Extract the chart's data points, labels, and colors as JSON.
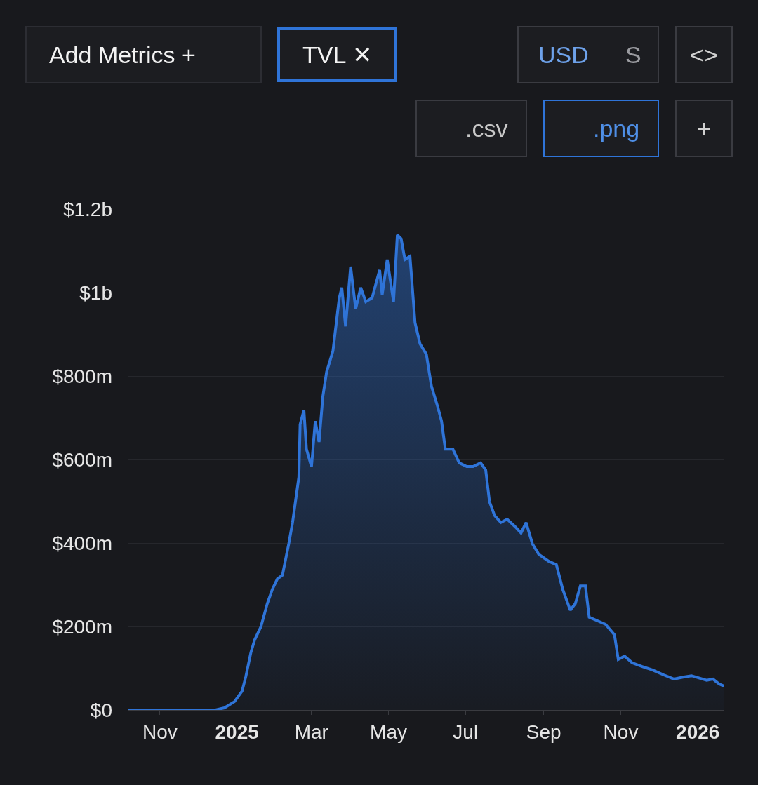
{
  "chart_data": {
    "type": "area",
    "x": [
      "2024-10-07",
      "2024-11-15",
      "2024-12-15",
      "2024-12-22",
      "2024-12-30",
      "2025-01-05",
      "2025-01-08",
      "2025-01-12",
      "2025-01-15",
      "2025-01-20",
      "2025-01-25",
      "2025-01-29",
      "2025-02-02",
      "2025-02-06",
      "2025-02-11",
      "2025-02-14",
      "2025-02-19",
      "2025-02-20",
      "2025-02-23",
      "2025-02-25",
      "2025-03-01",
      "2025-03-04",
      "2025-03-07",
      "2025-03-10",
      "2025-03-13",
      "2025-03-18",
      "2025-03-23",
      "2025-03-25",
      "2025-03-28",
      "2025-04-01",
      "2025-04-05",
      "2025-04-09",
      "2025-04-13",
      "2025-04-18",
      "2025-04-24",
      "2025-04-26",
      "2025-04-30",
      "2025-05-05",
      "2025-05-08",
      "2025-05-11",
      "2025-05-14",
      "2025-05-18",
      "2025-05-22",
      "2025-05-26",
      "2025-05-31",
      "2025-06-04",
      "2025-06-09",
      "2025-06-12",
      "2025-06-15",
      "2025-06-21",
      "2025-06-26",
      "2025-07-02",
      "2025-07-07",
      "2025-07-13",
      "2025-07-17",
      "2025-07-20",
      "2025-07-24",
      "2025-07-29",
      "2025-08-03",
      "2025-08-09",
      "2025-08-14",
      "2025-08-18",
      "2025-08-23",
      "2025-08-28",
      "2025-09-05",
      "2025-09-11",
      "2025-09-16",
      "2025-09-22",
      "2025-09-26",
      "2025-09-30",
      "2025-10-04",
      "2025-10-07",
      "2025-10-14",
      "2025-10-20",
      "2025-10-27",
      "2025-10-30",
      "2025-11-04",
      "2025-11-10",
      "2025-11-18",
      "2025-11-26",
      "2025-12-05",
      "2025-12-13",
      "2025-12-21",
      "2025-12-27",
      "2026-01-08",
      "2026-01-13",
      "2026-01-18",
      "2026-01-22"
    ],
    "series": [
      {
        "color": "#2f74d8",
        "values": [
          0,
          0,
          0,
          5000000,
          20000000,
          45000000,
          80000000,
          138000000,
          168000000,
          200000000,
          255000000,
          289000000,
          314000000,
          323000000,
          398000000,
          449000000,
          558000000,
          684000000,
          718000000,
          625000000,
          583000000,
          692000000,
          642000000,
          751000000,
          810000000,
          860000000,
          987000000,
          1012000000,
          919000000,
          1062000000,
          961000000,
          1012000000,
          978000000,
          987000000,
          1054000000,
          995000000,
          1079000000,
          978000000,
          1138000000,
          1129000000,
          1079000000,
          1087000000,
          928000000,
          877000000,
          852000000,
          776000000,
          726000000,
          692000000,
          625000000,
          625000000,
          592000000,
          583000000,
          583000000,
          592000000,
          575000000,
          499000000,
          466000000,
          449000000,
          457000000,
          440000000,
          424000000,
          449000000,
          398000000,
          373000000,
          356000000,
          348000000,
          289000000,
          239000000,
          255000000,
          297000000,
          297000000,
          222000000,
          213000000,
          205000000,
          180000000,
          121000000,
          129000000,
          113000000,
          104000000,
          96000000,
          84000000,
          74000000,
          79000000,
          82000000,
          71000000,
          74000000,
          62000000,
          57000000
        ]
      }
    ],
    "xlim": [
      "2024-10-07",
      "2026-01-22"
    ],
    "xticks": [
      {
        "value": "2024-11-01",
        "label": "Nov"
      },
      {
        "value": "2025-01-01",
        "label": "2025"
      },
      {
        "value": "2025-03-01",
        "label": "Mar"
      },
      {
        "value": "2025-05-01",
        "label": "May"
      },
      {
        "value": "2025-07-01",
        "label": "Jul"
      },
      {
        "value": "2025-09-01",
        "label": "Sep"
      },
      {
        "value": "2025-11-01",
        "label": "Nov"
      },
      {
        "value": "2026-01-01",
        "label": "2026"
      }
    ],
    "ylim": [
      0,
      1200000000
    ],
    "yticks": [
      {
        "value": 0,
        "label": "$0"
      },
      {
        "value": 200000000,
        "label": "$200m"
      },
      {
        "value": 400000000,
        "label": "$400m"
      },
      {
        "value": 600000000,
        "label": "$600m"
      },
      {
        "value": 800000000,
        "label": "$800m"
      },
      {
        "value": 1000000000,
        "label": "$1b"
      },
      {
        "value": 1200000000,
        "label": "$1.2b"
      }
    ],
    "grid": "y",
    "annotations": [
      "Add Metrics +",
      "TVL ✕",
      "USD",
      "S",
      "<>",
      ".csv",
      ".png",
      "+"
    ]
  }
}
